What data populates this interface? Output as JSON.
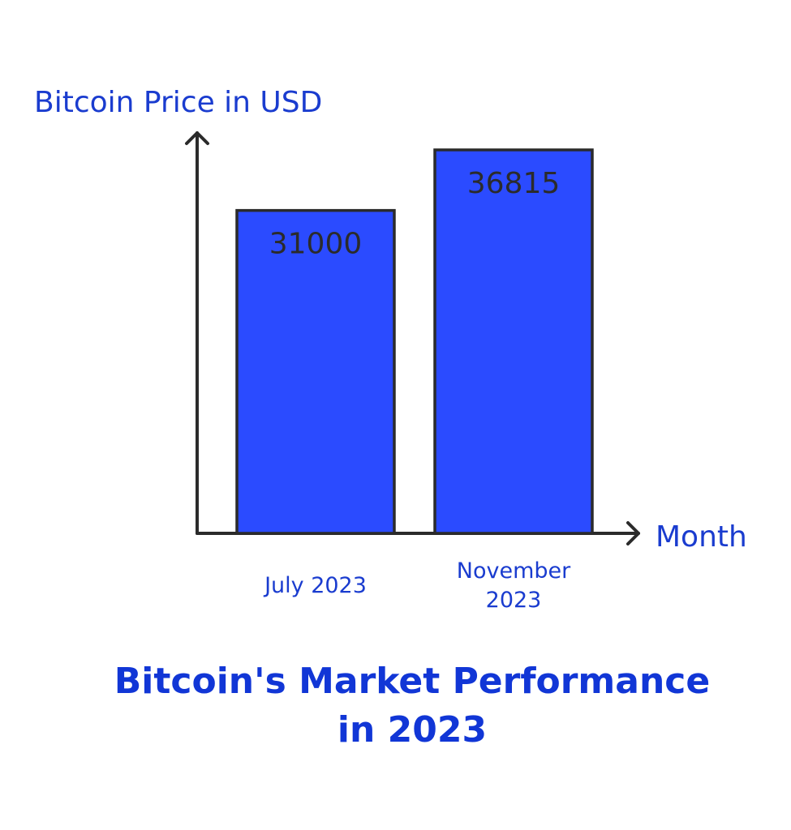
{
  "chart_data": {
    "type": "bar",
    "title_lines": [
      "Bitcoin's Market Performance",
      "in 2023"
    ],
    "xlabel": "Month",
    "ylabel": "Bitcoin Price in USD",
    "categories": [
      {
        "label_lines": [
          "July 2023"
        ]
      },
      {
        "label_lines": [
          "November",
          "2023"
        ]
      }
    ],
    "values": [
      31000,
      36815
    ],
    "value_labels": [
      "31000",
      "36815"
    ],
    "ylim": [
      0,
      40000
    ],
    "grid": false,
    "legend": "none",
    "colors": {
      "bar_fill": "#2b4bff",
      "bar_stroke": "#2b2b2b",
      "axis": "#2b2b2b",
      "label_text": "#1a3ccf",
      "title_text": "#1136d6",
      "value_text": "#2b2b2b"
    }
  }
}
